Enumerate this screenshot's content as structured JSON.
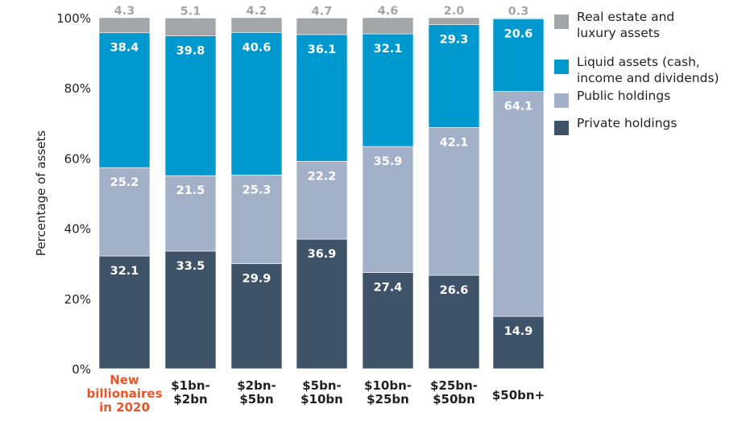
{
  "chart_data": {
    "type": "bar",
    "stacked": true,
    "title": "",
    "xlabel": "",
    "ylabel": "Percentage of assets",
    "ylim": [
      0,
      100
    ],
    "yticks": [
      "0%",
      "20%",
      "40%",
      "60%",
      "80%",
      "100%"
    ],
    "ytick_values": [
      0,
      20,
      40,
      60,
      80,
      100
    ],
    "grid": false,
    "legend_position": "top-right",
    "categories": [
      [
        "New",
        "billionaires",
        "in 2020"
      ],
      [
        "$1bn-",
        "$2bn"
      ],
      [
        "$2bn-",
        "$5bn"
      ],
      [
        "$5bn-",
        "$10bn"
      ],
      [
        "$10bn-",
        "$25bn"
      ],
      [
        "$25bn-",
        "$50bn"
      ],
      [
        "$50bn+"
      ]
    ],
    "highlighted_category_index": 0,
    "highlight_color": "#e8562a",
    "series": [
      {
        "name": "Private holdings",
        "color": "#3e5268",
        "values": [
          32.1,
          33.5,
          29.9,
          36.9,
          27.4,
          26.6,
          14.9
        ]
      },
      {
        "name": "Public holdings",
        "color": "#a3b1c8",
        "values": [
          25.2,
          21.5,
          25.3,
          22.2,
          35.9,
          42.1,
          64.1
        ]
      },
      {
        "name": "Liquid assets (cash, income and dividends)",
        "color": "#0099cf",
        "values": [
          38.4,
          39.8,
          40.6,
          36.1,
          32.1,
          29.3,
          20.6
        ]
      },
      {
        "name": "Real estate and luxury assets",
        "color": "#a3a6a9",
        "values": [
          4.3,
          5.1,
          4.2,
          4.7,
          4.6,
          2.0,
          0.3
        ]
      }
    ],
    "legend": [
      {
        "lines": [
          "Real estate and",
          "luxury assets"
        ],
        "color": "#a3a6a9"
      },
      {
        "lines": [
          "Liquid assets (cash,",
          "income and dividends)"
        ],
        "color": "#0099cf"
      },
      {
        "lines": [
          "Public holdings"
        ],
        "color": "#a3b1c8"
      },
      {
        "lines": [
          "Private holdings"
        ],
        "color": "#3e5268"
      }
    ]
  }
}
